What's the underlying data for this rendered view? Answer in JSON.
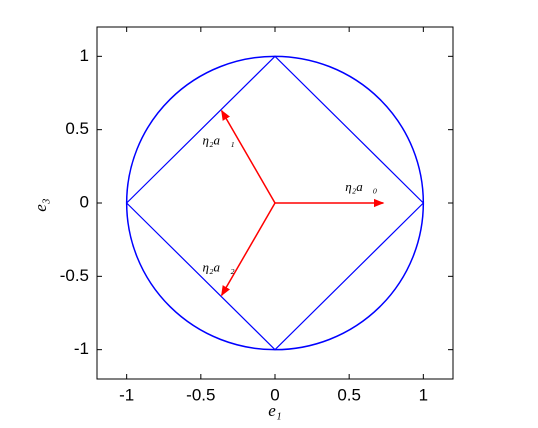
{
  "chart_data": {
    "type": "vector-diagram",
    "xlabel": "e₁",
    "ylabel": "e₃",
    "xlim": [
      -1.2,
      1.2
    ],
    "ylim": [
      -1.2,
      1.2
    ],
    "xticks": [
      -1,
      -0.5,
      0,
      0.5,
      1
    ],
    "yticks": [
      -1,
      -0.5,
      0,
      0.5,
      1
    ],
    "circle": {
      "x": 0,
      "y": 0,
      "radius": 1,
      "color": "#0000ff"
    },
    "polygon": {
      "color": "#0000ff",
      "x": [
        1,
        0,
        -1,
        0,
        1
      ],
      "y": [
        0,
        1,
        0,
        -1,
        0
      ]
    },
    "arrows": {
      "color": "#ff0000",
      "x": [
        0.73,
        -0.36,
        -0.36
      ],
      "y": [
        0,
        0.63,
        -0.63
      ],
      "labels": [
        "η₂a⃗₀",
        "η₂a⃗₁",
        "η₂a⃗₂"
      ]
    }
  }
}
